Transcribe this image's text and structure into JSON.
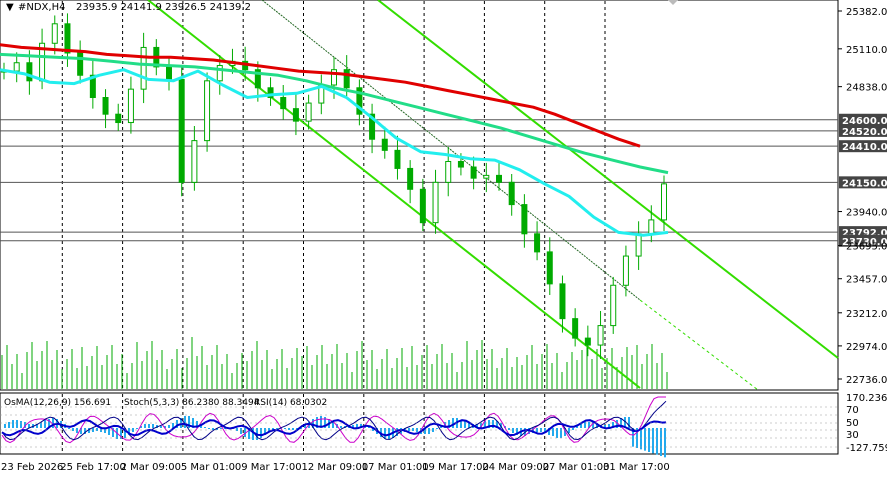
{
  "header": {
    "symbol": "#NDX,H4",
    "ohlc": "23935.9 24141.9 23926.5 24139.2"
  },
  "indicator_header": {
    "osma": "OsMA(12,26,9) 156.691",
    "stoch": "Stoch(5,3,3) 86.2380 88.3494",
    "rsi": "RSI(14) 68.0302"
  },
  "colors": {
    "candle": "#00aa00",
    "ma_red": "#e00000",
    "ma_teal": "#22dd88",
    "ma_cyan": "#22eeee",
    "channel": "#33dd00",
    "grid": "#000000",
    "volume": "#00aa00",
    "hist": "#22aaee",
    "osma_signal": "#0000cc",
    "stoch_line": "#000088",
    "rsi_line": "#cc00cc",
    "price_tag": "#444444"
  },
  "chart_data": {
    "type": "line",
    "title": "#NDX,H4",
    "ylim": [
      22736,
      25382
    ],
    "x_ticks": [
      "23 Feb 2026",
      "25 Feb 17:00",
      "2 Mar 09:00",
      "5 Mar 01:00",
      "9 Mar 17:00",
      "12 Mar 09:00",
      "17 Mar 01:00",
      "19 Mar 17:00",
      "24 Mar 09:00",
      "27 Mar 01:00",
      "31 Mar 17:00"
    ],
    "y_ticks": [
      "25382.0",
      "25110.0",
      "24838.0",
      "24600.0",
      "24520.0",
      "24410.0",
      "24150.0",
      "23940.0",
      "23792.0",
      "23730.0",
      "23695.0",
      "23457.0",
      "23212.0",
      "22974.0",
      "22736.0"
    ],
    "price_levels": [
      24600,
      24520,
      24410,
      24150,
      23792,
      23730
    ],
    "series": [
      {
        "values": [
          24950,
          25010,
          24880,
          25150,
          25290,
          25080,
          24920,
          24760,
          24640,
          24580,
          24820,
          25120,
          24980,
          24890,
          24150,
          24450,
          24880,
          24990,
          25020,
          24960,
          24830,
          24760,
          24680,
          24590,
          24720,
          24850,
          24960,
          24830,
          24640,
          24460,
          24380,
          24250,
          24100,
          23860,
          24150,
          24300,
          24260,
          24180,
          24200,
          24150,
          23990,
          23780,
          23650,
          23420,
          23170,
          23030,
          22980,
          23120,
          23410,
          23620,
          23780,
          23880,
          24139
        ]
      },
      {
        "values": [
          25140,
          25120,
          25110,
          25100,
          25090,
          25070,
          25060,
          25050,
          25050,
          25040,
          25030,
          25010,
          24990,
          24970,
          24950,
          24940,
          24930,
          24910,
          24890,
          24870,
          24840,
          24810,
          24780,
          24750,
          24720,
          24690,
          24640,
          24580,
          24520,
          24460,
          24410
        ]
      },
      {
        "values": [
          25070,
          25060,
          25050,
          25040,
          25020,
          25000,
          24990,
          24980,
          24960,
          24940,
          24920,
          24880,
          24830,
          24790,
          24740,
          24690,
          24640,
          24590,
          24540,
          24480,
          24420,
          24360,
          24310,
          24260,
          24220
        ]
      },
      {
        "values": [
          24960,
          24930,
          24870,
          24860,
          24920,
          24960,
          24890,
          24880,
          24950,
          24850,
          24760,
          24780,
          24790,
          24840,
          24760,
          24620,
          24470,
          24370,
          24350,
          24320,
          24310,
          24240,
          24140,
          24050,
          23900,
          23790,
          23770,
          23790
        ]
      }
    ]
  }
}
